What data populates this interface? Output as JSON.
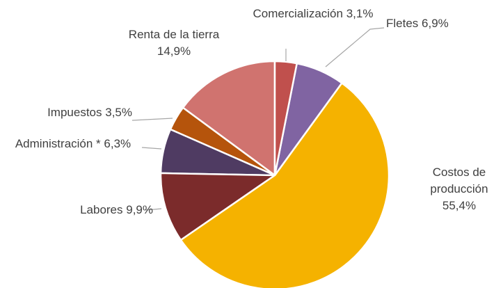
{
  "chart_data": {
    "type": "pie",
    "categories": [
      "Comercialización",
      "Fletes",
      "Costos de producción",
      "Labores",
      "Administración *",
      "Impuestos",
      "Renta de la tierra"
    ],
    "values": [
      3.1,
      6.9,
      55.4,
      9.9,
      6.3,
      3.5,
      14.9
    ],
    "value_labels": [
      "3,1%",
      "6,9%",
      "55,4%",
      "9,9%",
      "6,3%",
      "3,5%",
      "14,9%"
    ],
    "colors": [
      "#c0504d",
      "#8064a2",
      "#f5b200",
      "#7b2b2b",
      "#4f3b62",
      "#b5540c",
      "#d0736f"
    ]
  }
}
